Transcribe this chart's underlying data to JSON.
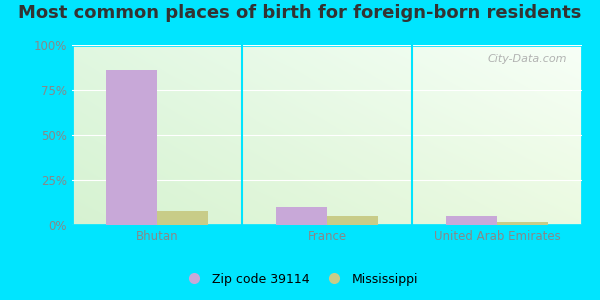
{
  "title": "Most common places of birth for foreign-born residents",
  "categories": [
    "Bhutan",
    "France",
    "United Arab Emirates"
  ],
  "series": [
    {
      "label": "Zip code 39114",
      "color": "#c8a8d8",
      "values": [
        86,
        10,
        5
      ]
    },
    {
      "label": "Mississippi",
      "color": "#c8cc88",
      "values": [
        8,
        5,
        1.5
      ]
    }
  ],
  "ylim": [
    0,
    100
  ],
  "yticks": [
    0,
    25,
    50,
    75,
    100
  ],
  "ytick_labels": [
    "0%",
    "25%",
    "50%",
    "75%",
    "100%"
  ],
  "bar_width": 0.3,
  "outer_bg": "#00e5ff",
  "chart_bg_topleft": "#d4edda",
  "chart_bg_topright": "#f0faf0",
  "chart_bg_bottom": "#e8f5d0",
  "title_fontsize": 13,
  "tick_color": "#888888",
  "separator_color": "#00e5ff",
  "watermark_text": "City-Data.com"
}
